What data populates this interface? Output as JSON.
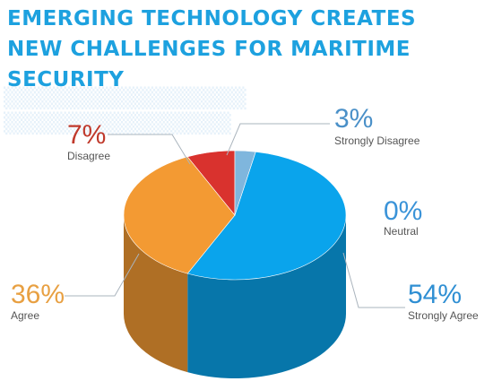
{
  "title_line1": "EMERGING TECHNOLOGY CREATES",
  "title_line2": "NEW CHALLENGES FOR MARITIME SECURITY",
  "chart_data": {
    "type": "pie",
    "title": "EMERGING TECHNOLOGY CREATES NEW CHALLENGES FOR MARITIME SECURITY",
    "categories": [
      "Strongly Agree",
      "Agree",
      "Disagree",
      "Strongly Disagree",
      "Neutral"
    ],
    "values": [
      54,
      36,
      7,
      3,
      0
    ],
    "value_labels": [
      "54%",
      "36%",
      "7%",
      "3%",
      "0%"
    ],
    "style": "3d-cylinder",
    "colors": {
      "Strongly Agree": "#0aa4ec",
      "Agree": "#f39a33",
      "Disagree": "#d9322e",
      "Strongly Disagree": "#7fb6dd",
      "Neutral": "#3a93d8"
    },
    "label_colors": {
      "Strongly Agree": "#2f8fd3",
      "Agree": "#e8a042",
      "Disagree": "#c0392b",
      "Strongly Disagree": "#4a90c8",
      "Neutral": "#3a93d8"
    }
  }
}
